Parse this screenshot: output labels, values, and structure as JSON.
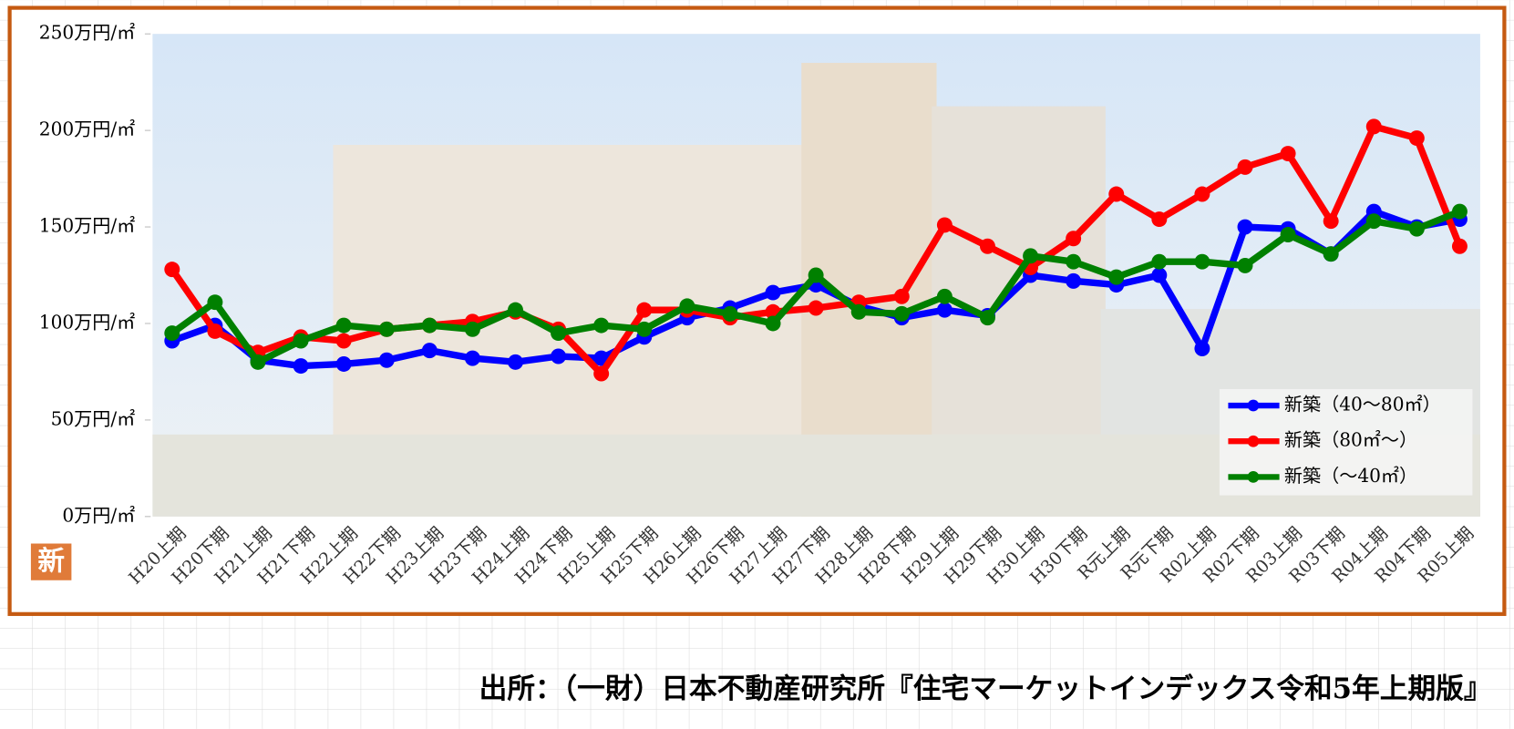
{
  "chart_data": {
    "type": "line",
    "categories": [
      "H20上期",
      "H20下期",
      "H21上期",
      "H21下期",
      "H22上期",
      "H22下期",
      "H23上期",
      "H23下期",
      "H24上期",
      "H24下期",
      "H25上期",
      "H25下期",
      "H26上期",
      "H26下期",
      "H27上期",
      "H27下期",
      "H28上期",
      "H28下期",
      "H29上期",
      "H29下期",
      "H30上期",
      "H30下期",
      "R元上期",
      "R元下期",
      "R02上期",
      "R02下期",
      "R03上期",
      "R03下期",
      "R04上期",
      "R04下期",
      "R05上期"
    ],
    "series": [
      {
        "name": "新築（40～80㎡）",
        "color": "#0000ff",
        "values": [
          91,
          99,
          81,
          78,
          79,
          81,
          86,
          82,
          80,
          83,
          82,
          93,
          103,
          108,
          116,
          120,
          109,
          103,
          107,
          104,
          125,
          122,
          120,
          125,
          87,
          150,
          149,
          136,
          158,
          150,
          154
        ]
      },
      {
        "name": "新築（80㎡～）",
        "color": "#ff0000",
        "values": [
          128,
          96,
          85,
          93,
          91,
          97,
          99,
          101,
          106,
          97,
          74,
          107,
          107,
          103,
          106,
          108,
          111,
          114,
          151,
          140,
          129,
          144,
          167,
          154,
          167,
          181,
          188,
          153,
          202,
          196,
          140
        ]
      },
      {
        "name": "新築（～40㎡）",
        "color": "#008000",
        "values": [
          95,
          111,
          80,
          91,
          99,
          97,
          99,
          97,
          107,
          95,
          99,
          97,
          109,
          105,
          100,
          125,
          106,
          105,
          114,
          103,
          135,
          132,
          124,
          132,
          132,
          130,
          146,
          136,
          153,
          149,
          158
        ]
      }
    ],
    "ylim": [
      0,
      250
    ],
    "yticks": [
      {
        "value": 0,
        "label": "0万円/㎡"
      },
      {
        "value": 50,
        "label": "50万円/㎡"
      },
      {
        "value": 100,
        "label": "100万円/㎡"
      },
      {
        "value": 150,
        "label": "150万円/㎡"
      },
      {
        "value": 200,
        "label": "200万円/㎡"
      },
      {
        "value": 250,
        "label": "250万円/㎡"
      }
    ],
    "legend": "lower right",
    "icon": "新",
    "source": "出所：（一財）日本不動産研究所『住宅マーケットインデックス令和5年上期版』"
  }
}
